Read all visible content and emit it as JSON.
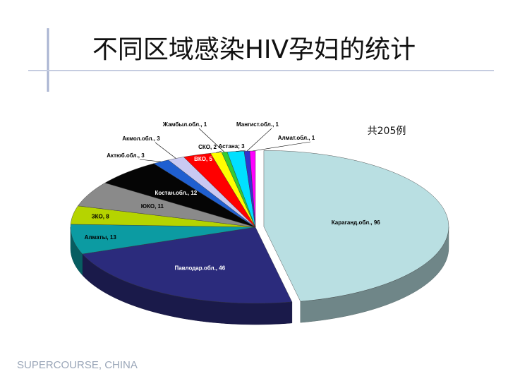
{
  "chart_data": {
    "type": "pie",
    "title": "不同区域感染HIV孕妇的统计",
    "annotation": "共205例",
    "values": [
      96,
      46,
      13,
      8,
      11,
      12,
      3,
      3,
      5,
      2,
      1,
      3,
      1,
      1
    ],
    "value_labels": [
      "Караганд.обл., 96",
      "Павлодар.обл., 46",
      "Алматы, 13",
      "ЗКО, 8",
      "ЮКО, 11",
      "Костан.обл., 12",
      "Актюб.обл., 3",
      "Акмол.обл., 3",
      "ВКО, 5",
      "СКО, 2",
      "Жамбыл.обл., 1",
      "Астана; 3",
      "Мангист.обл., 1",
      "Алмат.обл., 1"
    ],
    "colors": [
      "#b9dfe2",
      "#2b2b7c",
      "#0c9ba2",
      "#b5d400",
      "#8a8a8a",
      "#050505",
      "#1f5fd0",
      "#c9c9f2",
      "#ff0000",
      "#ffff00",
      "#33cc33",
      "#00e0ff",
      "#3333cc",
      "#ff00ff"
    ]
  },
  "footer": "SUPERCOURSE, CHINA"
}
